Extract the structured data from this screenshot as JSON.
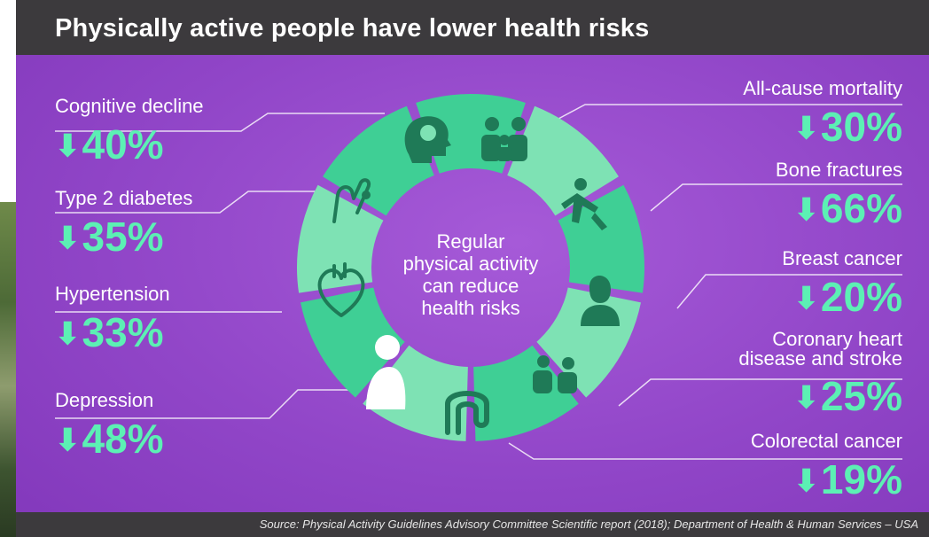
{
  "title": "Physically active people have lower health risks",
  "center": {
    "line1": "Regular",
    "line2": "physical activity",
    "line3": "can reduce",
    "line4": "health risks"
  },
  "risks_left": [
    {
      "label": "Cognitive decline",
      "value": "40%",
      "icon": "brain-icon"
    },
    {
      "label": "Type 2 diabetes",
      "value": "35%",
      "icon": "finger-prick-icon"
    },
    {
      "label": "Hypertension",
      "value": "33%",
      "icon": "heart-icon"
    },
    {
      "label": "Depression",
      "value": "48%",
      "icon": "sad-person-icon"
    }
  ],
  "risks_right": [
    {
      "label": "All-cause mortality",
      "value": "30%",
      "icon": "family-icon"
    },
    {
      "label": "Bone fractures",
      "value": "66%",
      "icon": "falling-person-icon"
    },
    {
      "label": "Breast cancer",
      "value": "20%",
      "icon": "woman-icon"
    },
    {
      "label_line1": "Coronary heart",
      "label_line2": "disease and stroke",
      "value": "25%",
      "icon": "doctor-patient-icon"
    },
    {
      "label": "Colorectal cancer",
      "value": "19%",
      "icon": "intestine-icon"
    }
  ],
  "arrow_glyph": "⬇",
  "source": "Source: Physical Activity Guidelines Advisory Committee Scientific report (2018); Department of Health & Human Services – USA",
  "colors": {
    "background": "#9146c8",
    "title_bar": "#3c3a3d",
    "value": "#5cf0b4",
    "segment_light": "#7ee2b4",
    "segment_dark": "#3fcf95"
  }
}
